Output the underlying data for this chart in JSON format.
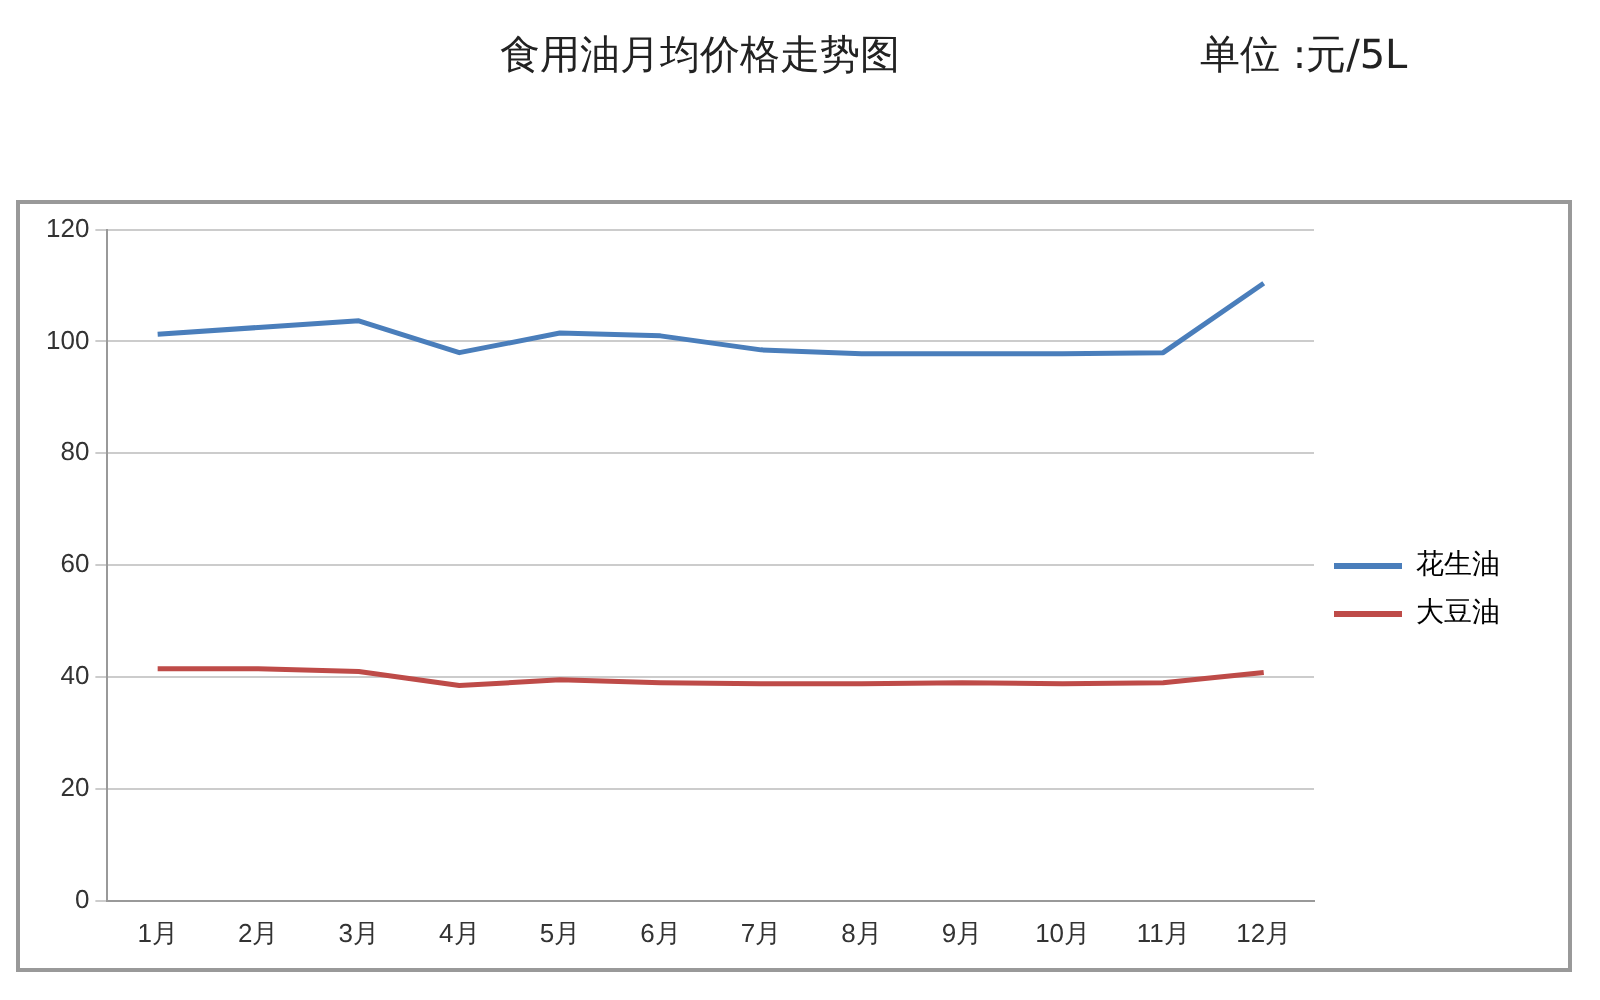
{
  "chart_data": {
    "type": "line",
    "title": "食用油月均价格走势图",
    "annotations": [
      "单位 :元/5L"
    ],
    "categories": [
      "1月",
      "2月",
      "3月",
      "4月",
      "5月",
      "6月",
      "7月",
      "8月",
      "9月",
      "10月",
      "11月",
      "12月"
    ],
    "series": [
      {
        "name": "花生油",
        "color": "#4a7ebb",
        "values": [
          101.3,
          102.5,
          103.7,
          98,
          101.5,
          101,
          98.5,
          97.8,
          97.8,
          97.8,
          98,
          110.4
        ]
      },
      {
        "name": "大豆油",
        "color": "#be4b48",
        "values": [
          41.5,
          41.5,
          41,
          38.5,
          39.5,
          39,
          38.8,
          38.8,
          39,
          38.8,
          39,
          40.8
        ]
      }
    ],
    "ylim": [
      0,
      120
    ],
    "yticks": [
      0,
      20,
      40,
      60,
      80,
      100,
      120
    ],
    "grid": "y",
    "legend": "right",
    "marker": "none",
    "line_style": "solid"
  }
}
